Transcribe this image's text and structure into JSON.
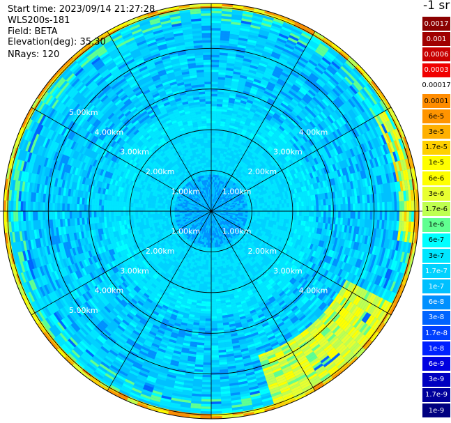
{
  "info": {
    "start_time": "Start time: 2023/09/14 21:27:28",
    "instrument": "WLS200s-181",
    "field": "Field: BETA",
    "elevation": "Elevation(deg): 35.30",
    "nrays": "NRays: 120"
  },
  "chart_data": {
    "type": "heatmap",
    "projection": "polar-ppi",
    "field": "BETA",
    "n_rays": 120,
    "max_range_km": 5.1,
    "range_rings_km": [
      1,
      2,
      3,
      4,
      5
    ],
    "ring_labels": [
      "1.00km",
      "2.00km",
      "3.00km",
      "4.00km",
      "5.00km"
    ],
    "spokes_deg": [
      0,
      30,
      60,
      90,
      120,
      150,
      180,
      210,
      240,
      270,
      300,
      330
    ],
    "colorbar": {
      "unit": "-1 sr",
      "labels": [
        "0.0017",
        "0.001",
        "0.0006",
        "0.0003",
        "0.00017",
        "0.0001",
        "6e-5",
        "3e-5",
        "1.7e-5",
        "1e-5",
        "6e-6",
        "3e-6",
        "1.7e-6",
        "1e-6",
        "6e-7",
        "3e-7",
        "1.7e-7",
        "1e-7",
        "6e-8",
        "3e-8",
        "1.7e-8",
        "1e-8",
        "6e-9",
        "3e-9",
        "1.7e-9",
        "1e-9"
      ],
      "colors": [
        "#8b0000",
        "#a00000",
        "#c80000",
        "#f00000",
        "#ffffff",
        "#ff8c00",
        "#ff9400",
        "#ffb000",
        "#ffd000",
        "#ffff00",
        "#ffff00",
        "#e8ff30",
        "#bfff50",
        "#60ff90",
        "#00ffff",
        "#00e6ff",
        "#00d2ff",
        "#00c0ff",
        "#0090ff",
        "#0064ff",
        "#0040ff",
        "#0020ff",
        "#0000e0",
        "#0000c0",
        "#00009c",
        "#000080"
      ]
    }
  }
}
